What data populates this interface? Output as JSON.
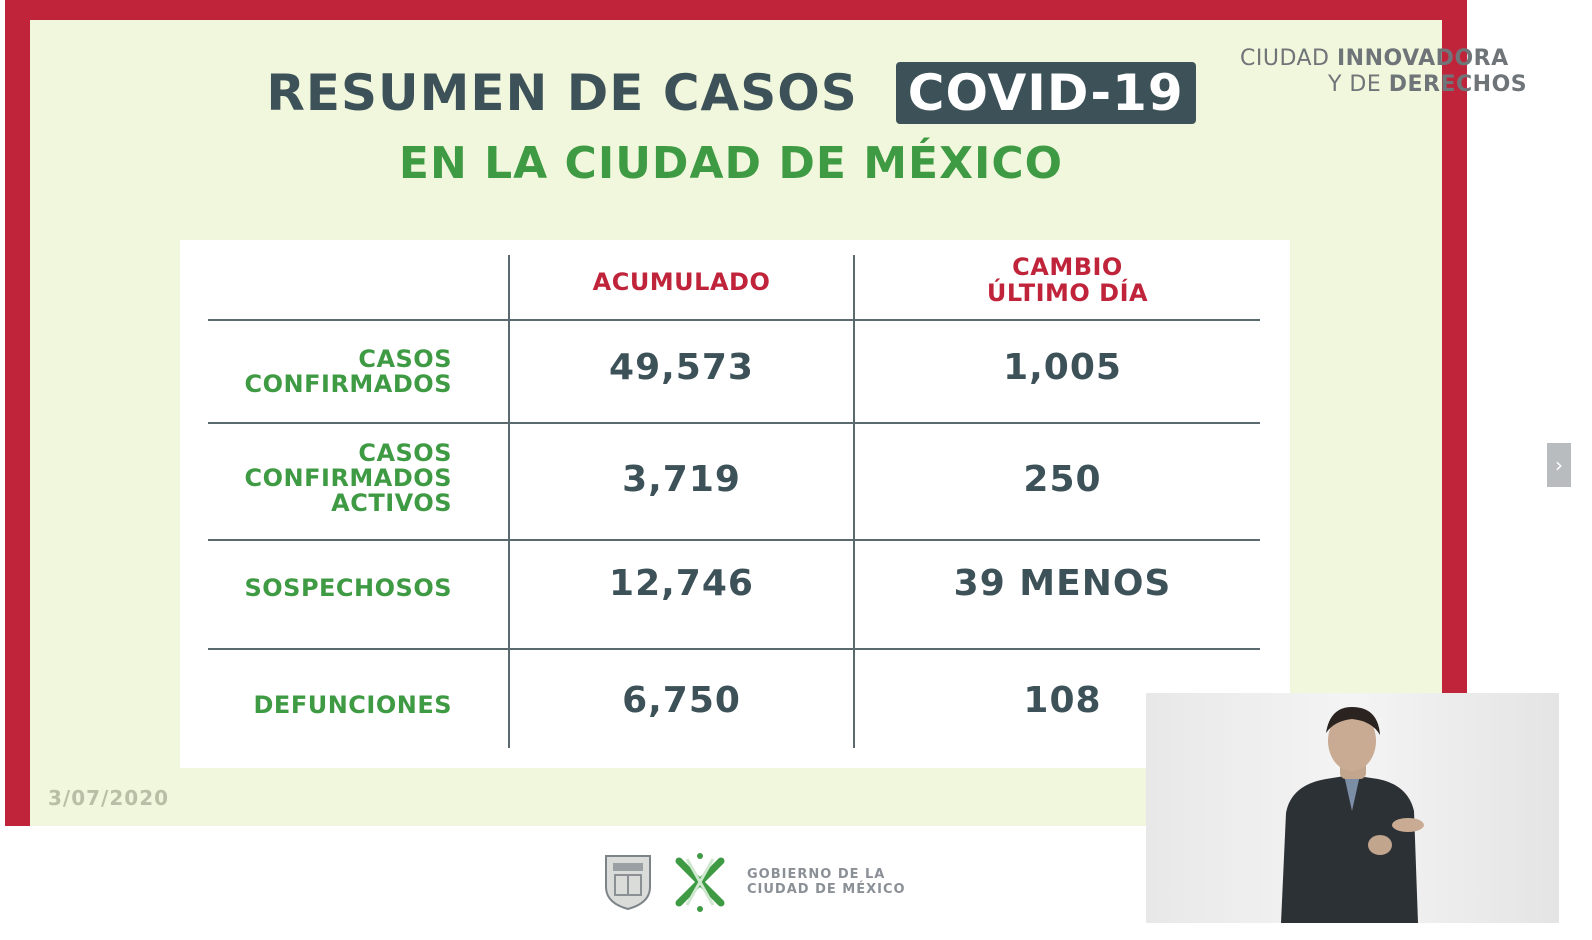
{
  "brand": {
    "line1_a": "CIUDAD ",
    "line1_b": "INNOVADORA",
    "line2_a": "Y DE ",
    "line2_b": "DERECHOS"
  },
  "title": {
    "main": "RESUMEN DE CASOS",
    "badge": "COVID-19",
    "sub": "EN LA CIUDAD DE MÉXICO"
  },
  "table": {
    "headers": {
      "accumulated": "ACUMULADO",
      "change_line1": "CAMBIO",
      "change_line2": "ÚLTIMO DÍA"
    },
    "rows": [
      {
        "label_lines": [
          "CASOS",
          "CONFIRMADOS"
        ],
        "accumulated": "49,573",
        "change": "1,005"
      },
      {
        "label_lines": [
          "CASOS",
          "CONFIRMADOS",
          "ACTIVOS"
        ],
        "accumulated": "3,719",
        "change": "250"
      },
      {
        "label_lines": [
          "SOSPECHOSOS"
        ],
        "accumulated": "12,746",
        "change": "39 MENOS"
      },
      {
        "label_lines": [
          "DEFUNCIONES"
        ],
        "accumulated": "6,750",
        "change": "108"
      }
    ]
  },
  "date": "3/07/2020",
  "side_tab_icon": "chevron-right-icon",
  "footer": {
    "gov_line1": "GOBIERNO DE LA",
    "gov_line2": "CIUDAD DE MÉXICO"
  },
  "colors": {
    "frame": "#c0243a",
    "slide_bg": "#f1f7dc",
    "dark_teal": "#3d5158",
    "green": "#3f9a44",
    "header_red": "#c0243a"
  }
}
